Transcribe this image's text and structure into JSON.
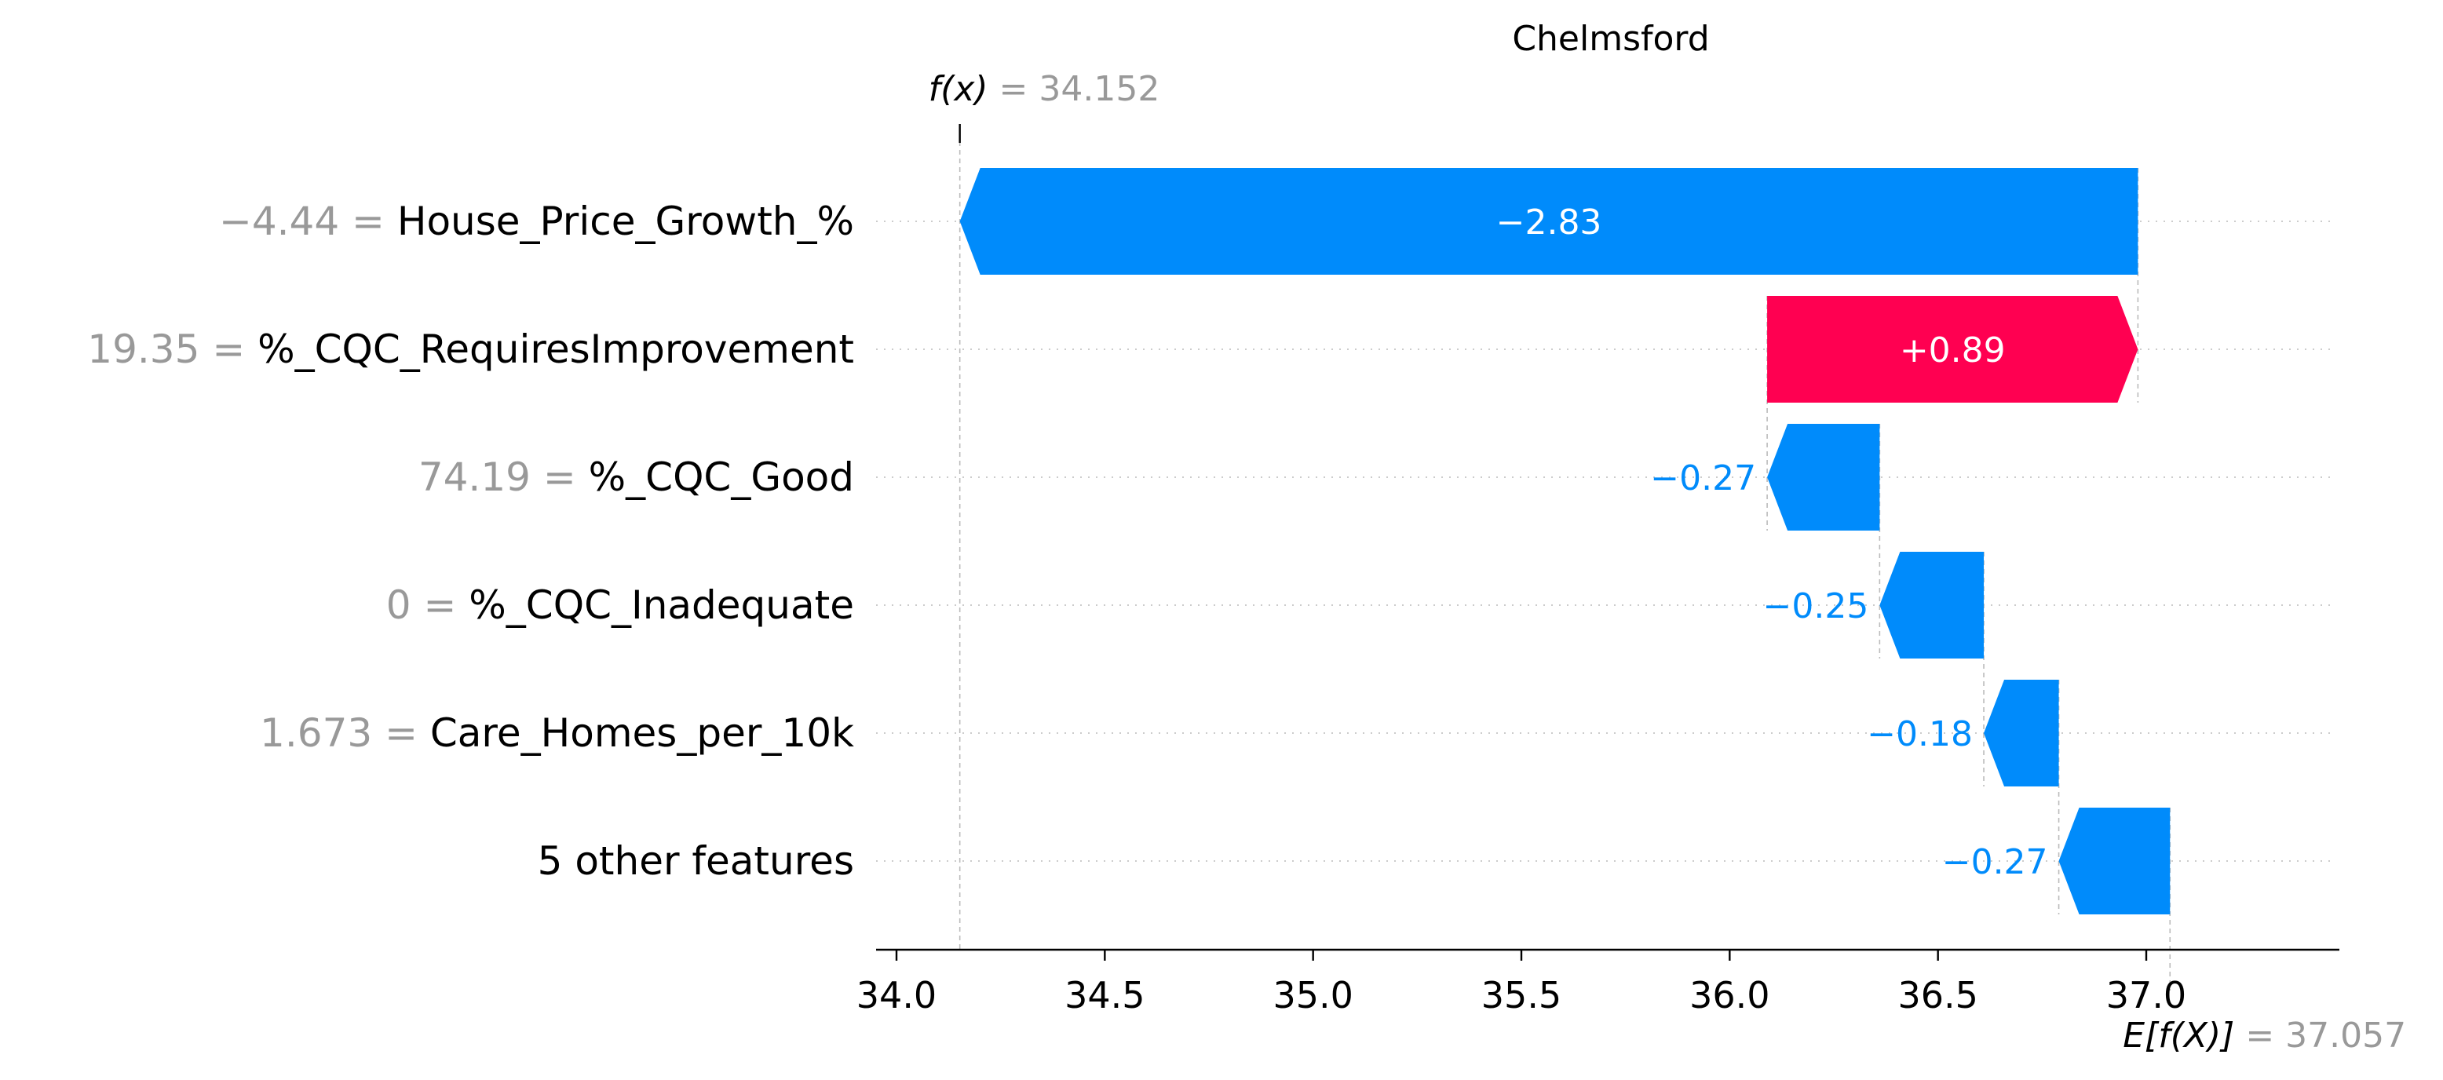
{
  "chart_data": {
    "type": "bar",
    "subtype": "waterfall",
    "title": "Chelmsford",
    "fx_label": "f(x)",
    "fx_sep": " = ",
    "fx_value": "34.152",
    "efx_label": "E[f(X)]",
    "efx_sep": " = ",
    "efx_value": "37.057",
    "base_value": 37.057,
    "final_value": 34.152,
    "xlim": [
      33.99,
      37.42
    ],
    "xticks": [
      34.0,
      34.5,
      35.0,
      35.5,
      36.0,
      36.5,
      37.0
    ],
    "xtick_labels": [
      "34.0",
      "34.5",
      "35.0",
      "35.5",
      "36.0",
      "36.5",
      "37.0"
    ],
    "features": [
      {
        "value_label": "−4.44",
        "eq": " = ",
        "name": "House_Price_Growth_%",
        "contribution": -2.83,
        "text": "−2.83",
        "start": 36.98,
        "end": 34.152
      },
      {
        "value_label": "19.35",
        "eq": " = ",
        "name": "%_CQC_RequiresImprovement",
        "contribution": 0.89,
        "text": "+0.89",
        "start": 36.09,
        "end": 36.98
      },
      {
        "value_label": "74.19",
        "eq": " = ",
        "name": "%_CQC_Good",
        "contribution": -0.27,
        "text": "−0.27",
        "start": 36.36,
        "end": 36.09
      },
      {
        "value_label": "0",
        "eq": " = ",
        "name": "%_CQC_Inadequate",
        "contribution": -0.25,
        "text": "−0.25",
        "start": 36.61,
        "end": 36.36
      },
      {
        "value_label": "1.673",
        "eq": " = ",
        "name": "Care_Homes_per_10k",
        "contribution": -0.18,
        "text": "−0.18",
        "start": 36.79,
        "end": 36.61
      },
      {
        "value_label": "",
        "eq": "",
        "name": "5 other features",
        "contribution": -0.27,
        "text": "−0.27",
        "start": 37.057,
        "end": 36.79
      }
    ],
    "colors": {
      "negative": "#008bfb",
      "positive": "#ff0051",
      "value_gray": "#999999",
      "text": "#000000"
    },
    "grid": false
  }
}
